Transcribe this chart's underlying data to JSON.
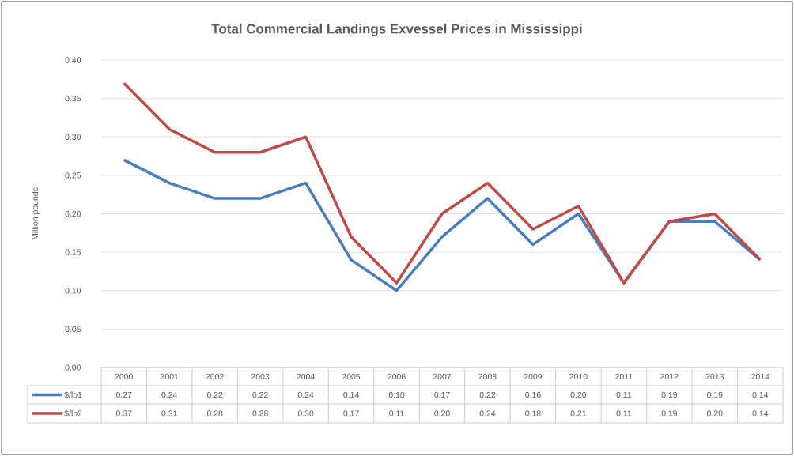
{
  "chart_data": {
    "type": "line",
    "title": "Total Commercial Landings Exvessel Prices in Mississippi",
    "ylabel": "Million pounds",
    "categories": [
      "2000",
      "2001",
      "2002",
      "2003",
      "2004",
      "2005",
      "2006",
      "2007",
      "2008",
      "2009",
      "2010",
      "2011",
      "2012",
      "2013",
      "2014"
    ],
    "series": [
      {
        "name": "$/lb1",
        "color": "#4a7ebb",
        "values": [
          0.27,
          0.24,
          0.22,
          0.22,
          0.24,
          0.14,
          0.1,
          0.17,
          0.22,
          0.16,
          0.2,
          0.11,
          0.19,
          0.19,
          0.14
        ],
        "value_labels": [
          "0.27",
          "0.24",
          "0.22",
          "0.22",
          "0.24",
          "0.14",
          "0.10",
          "0.17",
          "0.22",
          "0.16",
          "0.20",
          "0.11",
          "0.19",
          "0.19",
          "0.14"
        ]
      },
      {
        "name": "$/lb2",
        "color": "#be4b48",
        "values": [
          0.37,
          0.31,
          0.28,
          0.28,
          0.3,
          0.17,
          0.11,
          0.2,
          0.24,
          0.18,
          0.21,
          0.11,
          0.19,
          0.2,
          0.14
        ],
        "value_labels": [
          "0.37",
          "0.31",
          "0.28",
          "0.28",
          "0.30",
          "0.17",
          "0.11",
          "0.20",
          "0.24",
          "0.18",
          "0.21",
          "0.11",
          "0.19",
          "0.20",
          "0.14"
        ]
      }
    ],
    "ylim": [
      0,
      0.4
    ],
    "yticks": [
      {
        "value": 0,
        "label": "0.00"
      },
      {
        "value": 0.05,
        "label": "0.05"
      },
      {
        "value": 0.1,
        "label": "0.10"
      },
      {
        "value": 0.15,
        "label": "0.15"
      },
      {
        "value": 0.2,
        "label": "0.20"
      },
      {
        "value": 0.25,
        "label": "0.25"
      },
      {
        "value": 0.3,
        "label": "0.30"
      },
      {
        "value": 0.35,
        "label": "0.35"
      },
      {
        "value": 0.4,
        "label": "0.40"
      }
    ],
    "grid": "y",
    "legend": "bottom",
    "marker": "none",
    "line_style": "solid"
  }
}
